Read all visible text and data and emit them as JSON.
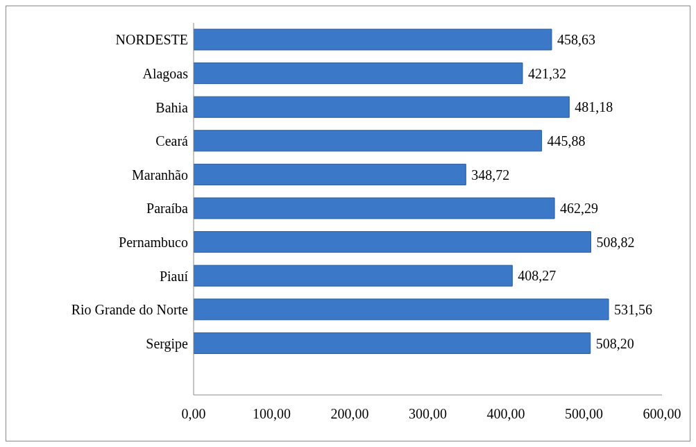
{
  "chart_data": {
    "type": "bar",
    "orientation": "horizontal",
    "categories": [
      "NORDESTE",
      "Alagoas",
      "Bahia",
      "Ceará",
      "Maranhão",
      "Paraíba",
      "Pernambuco",
      "Piauí",
      "Rio Grande do Norte",
      "Sergipe"
    ],
    "values": [
      458.63,
      421.32,
      481.18,
      445.88,
      348.72,
      462.29,
      508.82,
      408.27,
      531.56,
      508.2
    ],
    "value_labels": [
      "458,63",
      "421,32",
      "481,18",
      "445,88",
      "348,72",
      "462,29",
      "508,82",
      "408,27",
      "531,56",
      "508,20"
    ],
    "color": "#3b78c8",
    "xlim": [
      0,
      600
    ],
    "xticks": [
      {
        "value": 0,
        "label": "0,00"
      },
      {
        "value": 100,
        "label": "100,00"
      },
      {
        "value": 200,
        "label": "200,00"
      },
      {
        "value": 300,
        "label": "300,00"
      },
      {
        "value": 400,
        "label": "400,00"
      },
      {
        "value": 500,
        "label": "500,00"
      },
      {
        "value": 600,
        "label": "600,00"
      }
    ],
    "grid": false,
    "legend": false
  }
}
